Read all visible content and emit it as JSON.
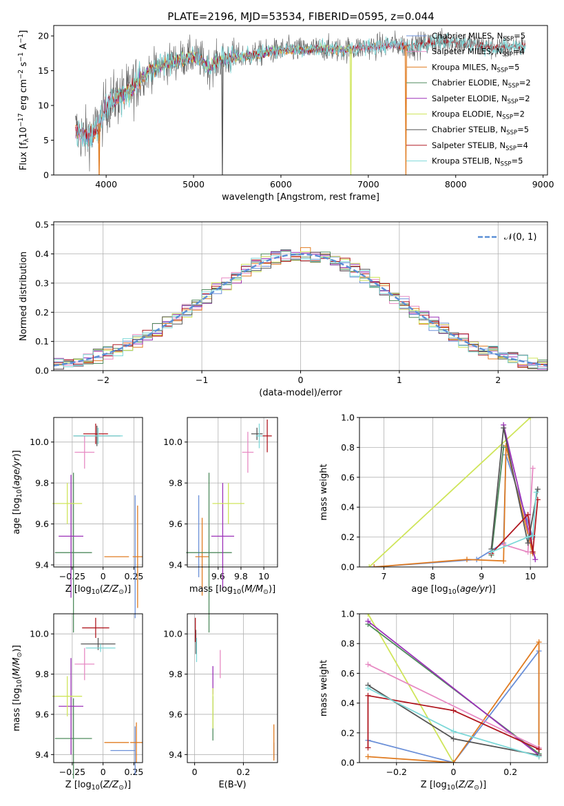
{
  "figure": {
    "title": "PLATE=2196, MJD=53534, FIBERID=0595, z=0.044"
  },
  "colors": {
    "Chabrier MILES": "#6a8fd8",
    "Salpeter MILES": "#e78ac3",
    "Kroupa MILES": "#e07b20",
    "Chabrier ELODIE": "#4e8a5c",
    "Salpeter ELODIE": "#9b30b8",
    "Kroupa ELODIE": "#cfe55a",
    "Chabrier STELIB": "#555555",
    "Salpeter STELIB": "#b01820",
    "Kroupa STELIB": "#7dd8d8",
    "gauss": "#5b8fd6"
  },
  "chart_data": [
    {
      "id": "spectrum",
      "type": "line",
      "title": "PLATE=2196, MJD=53534, FIBERID=0595, z=0.044",
      "xlabel": "wavelength [Angstrom, rest frame]",
      "ylabel": "Flux [f_λ10^-17 erg cm^-2 s^-1 A^-1]",
      "xlim": [
        3400,
        9050
      ],
      "ylim": [
        0,
        21.5
      ],
      "xticks": [
        4000,
        5000,
        6000,
        7000,
        8000,
        9000
      ],
      "yticks": [
        0,
        5,
        10,
        15,
        20
      ],
      "legend_position": "upper-right",
      "series": [
        {
          "name": "Chabrier MILES, N_SSP=5",
          "legend_main": "Chabrier MILES, N",
          "legend_sub": "SSP",
          "legend_tail": "=5"
        },
        {
          "name": "Salpeter MILES, N_SSP=4",
          "legend_main": "Salpeter MILES, N",
          "legend_sub": "SSP",
          "legend_tail": "=4"
        },
        {
          "name": "Kroupa MILES, N_SSP=5",
          "legend_main": "Kroupa MILES, N",
          "legend_sub": "SSP",
          "legend_tail": "=5"
        },
        {
          "name": "Chabrier ELODIE, N_SSP=2",
          "legend_main": "Chabrier ELODIE, N",
          "legend_sub": "SSP",
          "legend_tail": "=2"
        },
        {
          "name": "Salpeter ELODIE, N_SSP=2",
          "legend_main": "Salpeter ELODIE, N",
          "legend_sub": "SSP",
          "legend_tail": "=2"
        },
        {
          "name": "Kroupa ELODIE, N_SSP=2",
          "legend_main": "Kroupa ELODIE, N",
          "legend_sub": "SSP",
          "legend_tail": "=2"
        },
        {
          "name": "Chabrier STELIB, N_SSP=5",
          "legend_main": "Chabrier STELIB, N",
          "legend_sub": "SSP",
          "legend_tail": "=5"
        },
        {
          "name": "Salpeter STELIB, N_SSP=4",
          "legend_main": "Salpeter STELIB, N",
          "legend_sub": "SSP",
          "legend_tail": "=4"
        },
        {
          "name": "Kroupa STELIB, N_SSP=5",
          "legend_main": "Kroupa STELIB, N",
          "legend_sub": "SSP",
          "legend_tail": "=5"
        }
      ],
      "continuum": [
        [
          3650,
          6.5
        ],
        [
          3750,
          5.5
        ],
        [
          3850,
          6.0
        ],
        [
          3950,
          8.0
        ],
        [
          4000,
          10.0
        ],
        [
          4100,
          11.0
        ],
        [
          4200,
          11.5
        ],
        [
          4300,
          12.5
        ],
        [
          4400,
          14.0
        ],
        [
          4500,
          15.0
        ],
        [
          4600,
          15.5
        ],
        [
          4700,
          16.0
        ],
        [
          4800,
          16.5
        ],
        [
          4900,
          16.8
        ],
        [
          5000,
          17.0
        ],
        [
          5100,
          16.5
        ],
        [
          5175,
          15.5
        ],
        [
          5300,
          16.5
        ],
        [
          5500,
          17.0
        ],
        [
          5700,
          17.3
        ],
        [
          5900,
          17.8
        ],
        [
          6100,
          18.0
        ],
        [
          6300,
          18.0
        ],
        [
          6500,
          18.2
        ],
        [
          6700,
          18.0
        ],
        [
          6900,
          18.3
        ],
        [
          7100,
          18.5
        ],
        [
          7300,
          18.8
        ],
        [
          7500,
          18.5
        ],
        [
          7700,
          19.0
        ],
        [
          7900,
          19.2
        ],
        [
          8100,
          19.0
        ],
        [
          8300,
          18.5
        ],
        [
          8500,
          18.3
        ],
        [
          8700,
          18.5
        ],
        [
          8800,
          18.5
        ]
      ],
      "dropouts": [
        {
          "x": 3920,
          "series": "Kroupa MILES"
        },
        {
          "x": 5330,
          "series": "Chabrier STELIB"
        },
        {
          "x": 6800,
          "series": "Kroupa ELODIE"
        },
        {
          "x": 7430,
          "series": "Kroupa MILES"
        }
      ]
    },
    {
      "id": "residuals",
      "type": "histogram",
      "xlabel": "(data-model)/error",
      "ylabel": "Normed distribution",
      "xlim": [
        -2.5,
        2.5
      ],
      "ylim": [
        0,
        0.51
      ],
      "xticks": [
        -2,
        -1,
        0,
        1,
        2
      ],
      "yticks": [
        0.0,
        0.1,
        0.2,
        0.3,
        0.4,
        0.5
      ],
      "bin_width": 0.1,
      "gaussian": {
        "name": "𝒩(0, 1)",
        "mean": 0,
        "sigma": 1,
        "style": "dashed"
      },
      "legend_position": "upper-right"
    },
    {
      "id": "age_vs_Z",
      "type": "errorbar",
      "xlabel": "Z [log10(Z/Z⊙)]",
      "ylabel": "age [log10(age/yr)]",
      "xlim": [
        -0.4,
        0.32
      ],
      "ylim": [
        9.39,
        10.12
      ],
      "xticks": [
        -0.25,
        0.0,
        0.25
      ],
      "yticks": [
        9.4,
        9.6,
        9.8,
        10.0
      ],
      "points": [
        {
          "series": "Chabrier MILES",
          "x": 0.26,
          "y": 9.44,
          "xerr": 0.0,
          "yerr": 0.3
        },
        {
          "series": "Kroupa MILES",
          "x": 0.28,
          "y": 9.44,
          "xerr": 0.04,
          "yerr": 0.25
        },
        {
          "series": "Kroupa MILES",
          "x": 0.11,
          "y": 9.44,
          "xerr": 0.1,
          "yerr": 0.0
        },
        {
          "series": "Salpeter MILES",
          "x": -0.15,
          "y": 9.95,
          "xerr": 0.08,
          "yerr": 0.08
        },
        {
          "series": "Chabrier ELODIE",
          "x": -0.24,
          "y": 9.46,
          "xerr": 0.15,
          "yerr": 0.39
        },
        {
          "series": "Salpeter ELODIE",
          "x": -0.26,
          "y": 9.54,
          "xerr": 0.1,
          "yerr": 0.3
        },
        {
          "series": "Kroupa ELODIE",
          "x": -0.29,
          "y": 9.7,
          "xerr": 0.12,
          "yerr": 0.1
        },
        {
          "series": "Chabrier STELIB",
          "x": -0.05,
          "y": 10.03,
          "xerr": 0.19,
          "yerr": 0.05
        },
        {
          "series": "Salpeter STELIB",
          "x": -0.06,
          "y": 10.04,
          "xerr": 0.1,
          "yerr": 0.05
        },
        {
          "series": "Kroupa STELIB",
          "x": -0.04,
          "y": 10.03,
          "xerr": 0.2,
          "yerr": 0.04
        }
      ]
    },
    {
      "id": "age_vs_mass",
      "type": "errorbar",
      "xlabel": "mass [log10(M/M⊙)]",
      "ylabel": "",
      "xlim": [
        9.33,
        10.12
      ],
      "ylim": [
        9.39,
        10.12
      ],
      "xticks": [
        9.6,
        9.8,
        10.0
      ],
      "yticks": [
        9.4,
        9.6,
        9.8,
        10.0
      ],
      "points": [
        {
          "series": "Chabrier MILES",
          "x": 9.43,
          "y": 9.54,
          "xerr": 0.0,
          "yerr": 0.2
        },
        {
          "series": "Kroupa MILES",
          "x": 9.46,
          "y": 9.44,
          "xerr": 0.06,
          "yerr": 0.19
        },
        {
          "series": "Salpeter MILES",
          "x": 9.86,
          "y": 9.95,
          "xerr": 0.05,
          "yerr": 0.1
        },
        {
          "series": "Chabrier ELODIE",
          "x": 9.52,
          "y": 9.46,
          "xerr": 0.2,
          "yerr": 0.39
        },
        {
          "series": "Salpeter ELODIE",
          "x": 9.64,
          "y": 9.54,
          "xerr": 0.1,
          "yerr": 0.26
        },
        {
          "series": "Kroupa ELODIE",
          "x": 9.69,
          "y": 9.7,
          "xerr": 0.14,
          "yerr": 0.1
        },
        {
          "series": "Chabrier STELIB",
          "x": 9.94,
          "y": 10.04,
          "xerr": 0.05,
          "yerr": 0.03
        },
        {
          "series": "Salpeter STELIB",
          "x": 10.03,
          "y": 10.03,
          "xerr": 0.04,
          "yerr": 0.08
        },
        {
          "series": "Kroupa STELIB",
          "x": 9.96,
          "y": 10.03,
          "xerr": 0.03,
          "yerr": 0.06
        }
      ]
    },
    {
      "id": "massweight_vs_age",
      "type": "line",
      "xlabel": "age [log10(age/yr)]",
      "ylabel": "mass weight",
      "xlim": [
        6.5,
        10.35
      ],
      "ylim": [
        0,
        1.0
      ],
      "xticks": [
        7,
        8,
        9,
        10
      ],
      "yticks": [
        0.0,
        0.2,
        0.4,
        0.6,
        0.8,
        1.0
      ],
      "series": [
        {
          "series": "Kroupa ELODIE",
          "x": [
            6.7,
            10.0
          ],
          "y": [
            0.0,
            1.0
          ]
        },
        {
          "series": "Chabrier MILES",
          "x": [
            6.8,
            8.9,
            9.45,
            9.5,
            10.05
          ],
          "y": [
            0.0,
            0.05,
            0.16,
            0.75,
            0.2
          ]
        },
        {
          "series": "Kroupa MILES",
          "x": [
            6.8,
            8.7,
            9.45,
            9.5,
            10.05
          ],
          "y": [
            0.0,
            0.05,
            0.04,
            0.81,
            0.09
          ]
        },
        {
          "series": "Chabrier ELODIE",
          "x": [
            9.2,
            9.45
          ],
          "y": [
            0.08,
            0.8
          ]
        },
        {
          "series": "Salpeter ELODIE",
          "x": [
            9.45,
            10.1
          ],
          "y": [
            0.95,
            0.05
          ]
        },
        {
          "series": "Salpeter MILES",
          "x": [
            9.45,
            9.95,
            10.05
          ],
          "y": [
            0.15,
            0.1,
            0.66
          ]
        },
        {
          "series": "Chabrier STELIB",
          "x": [
            9.2,
            9.45,
            9.95,
            10.15
          ],
          "y": [
            0.12,
            0.93,
            0.16,
            0.52
          ]
        },
        {
          "series": "Salpeter STELIB",
          "x": [
            9.2,
            9.95,
            10.05,
            10.15
          ],
          "y": [
            0.09,
            0.35,
            0.1,
            0.45
          ]
        },
        {
          "series": "Kroupa STELIB",
          "x": [
            9.2,
            9.95,
            10.05,
            10.12
          ],
          "y": [
            0.1,
            0.2,
            0.21,
            0.5
          ]
        }
      ]
    },
    {
      "id": "mass_vs_Z",
      "type": "errorbar",
      "xlabel": "Z [log10(Z/Z⊙)]",
      "ylabel": "mass [log10(M/M⊙)]",
      "xlim": [
        -0.4,
        0.32
      ],
      "ylim": [
        9.36,
        10.1
      ],
      "xticks": [
        -0.25,
        0.0,
        0.25
      ],
      "yticks": [
        9.4,
        9.6,
        9.8,
        10.0
      ],
      "points": [
        {
          "series": "Chabrier MILES",
          "x": 0.16,
          "y": 9.42,
          "xerr": 0.1,
          "yerr": 0.0
        },
        {
          "series": "Chabrier MILES",
          "x": 0.26,
          "y": 9.42,
          "xerr": 0.0,
          "yerr": 0.12
        },
        {
          "series": "Kroupa MILES",
          "x": 0.27,
          "y": 9.46,
          "xerr": 0.05,
          "yerr": 0.1
        },
        {
          "series": "Kroupa MILES",
          "x": 0.11,
          "y": 9.46,
          "xerr": 0.1,
          "yerr": 0.0
        },
        {
          "series": "Salpeter MILES",
          "x": -0.15,
          "y": 9.85,
          "xerr": 0.08,
          "yerr": 0.08
        },
        {
          "series": "Chabrier ELODIE",
          "x": -0.24,
          "y": 9.48,
          "xerr": 0.15,
          "yerr": 0.2
        },
        {
          "series": "Salpeter ELODIE",
          "x": -0.26,
          "y": 9.64,
          "xerr": 0.1,
          "yerr": 0.24
        },
        {
          "series": "Kroupa ELODIE",
          "x": -0.29,
          "y": 9.69,
          "xerr": 0.12,
          "yerr": 0.1
        },
        {
          "series": "Chabrier STELIB",
          "x": -0.04,
          "y": 9.95,
          "xerr": 0.14,
          "yerr": 0.03
        },
        {
          "series": "Salpeter STELIB",
          "x": -0.06,
          "y": 10.03,
          "xerr": 0.11,
          "yerr": 0.05
        },
        {
          "series": "Kroupa STELIB",
          "x": -0.02,
          "y": 9.93,
          "xerr": 0.12,
          "yerr": 0.02
        }
      ]
    },
    {
      "id": "mass_vs_EBV",
      "type": "errorbar",
      "xlabel": "E(B-V)",
      "ylabel": "",
      "xlim": [
        -0.03,
        0.34
      ],
      "ylim": [
        9.36,
        10.1
      ],
      "xticks": [
        0.0,
        0.2
      ],
      "yticks": [
        9.4,
        9.6,
        9.8,
        10.0
      ],
      "points": [
        {
          "series": "Chabrier MILES",
          "x": 0.325,
          "y": 9.42,
          "xerr": 0.0,
          "yerr": 0.04
        },
        {
          "series": "Kroupa MILES",
          "x": 0.325,
          "y": 9.46,
          "xerr": 0.0,
          "yerr": 0.09
        },
        {
          "series": "Salpeter MILES",
          "x": 0.105,
          "y": 9.85,
          "xerr": 0.0,
          "yerr": 0.07
        },
        {
          "series": "Chabrier ELODIE",
          "x": 0.075,
          "y": 9.58,
          "xerr": 0.0,
          "yerr": 0.11
        },
        {
          "series": "Salpeter ELODIE",
          "x": 0.075,
          "y": 9.77,
          "xerr": 0.0,
          "yerr": 0.07
        },
        {
          "series": "Kroupa ELODIE",
          "x": 0.075,
          "y": 9.63,
          "xerr": 0.0,
          "yerr": 0.1
        },
        {
          "series": "Chabrier STELIB",
          "x": 0.005,
          "y": 9.96,
          "xerr": 0.0,
          "yerr": 0.06
        },
        {
          "series": "Salpeter STELIB",
          "x": 0.003,
          "y": 10.02,
          "xerr": 0.0,
          "yerr": 0.06
        },
        {
          "series": "Kroupa STELIB",
          "x": 0.008,
          "y": 9.92,
          "xerr": 0.0,
          "yerr": 0.06
        }
      ]
    },
    {
      "id": "massweight_vs_Z",
      "type": "line",
      "xlabel": "Z [log10(Z/Z⊙)]",
      "ylabel": "mass weight",
      "xlim": [
        -0.33,
        0.33
      ],
      "ylim": [
        0,
        1.0
      ],
      "xticks": [
        -0.2,
        0.0,
        0.2
      ],
      "yticks": [
        0.0,
        0.2,
        0.4,
        0.6,
        0.8,
        1.0
      ],
      "series": [
        {
          "series": "Kroupa ELODIE",
          "x": [
            -0.3,
            0.0
          ],
          "y": [
            1.0,
            0.0
          ]
        },
        {
          "series": "Chabrier MILES",
          "x": [
            -0.3,
            0.0,
            0.3,
            0.3
          ],
          "y": [
            0.15,
            0.0,
            0.75,
            0.05
          ]
        },
        {
          "series": "Kroupa MILES",
          "x": [
            -0.3,
            0.0,
            0.3,
            0.3
          ],
          "y": [
            0.04,
            0.0,
            0.81,
            0.04
          ]
        },
        {
          "series": "Chabrier ELODIE",
          "x": [
            -0.3,
            0.3
          ],
          "y": [
            0.93,
            0.06
          ]
        },
        {
          "series": "Salpeter ELODIE",
          "x": [
            -0.3,
            0.3
          ],
          "y": [
            0.95,
            0.05
          ]
        },
        {
          "series": "Salpeter MILES",
          "x": [
            -0.3,
            0.3
          ],
          "y": [
            0.66,
            0.1
          ]
        },
        {
          "series": "Chabrier STELIB",
          "x": [
            -0.3,
            0.0,
            0.3
          ],
          "y": [
            0.52,
            0.16,
            0.05
          ]
        },
        {
          "series": "Salpeter STELIB",
          "x": [
            -0.3,
            -0.3,
            0.0,
            0.3,
            0.3
          ],
          "y": [
            0.1,
            0.45,
            0.35,
            0.09,
            0.09
          ]
        },
        {
          "series": "Kroupa STELIB",
          "x": [
            -0.3,
            0.0,
            0.3
          ],
          "y": [
            0.5,
            0.21,
            0.04
          ]
        }
      ]
    }
  ]
}
